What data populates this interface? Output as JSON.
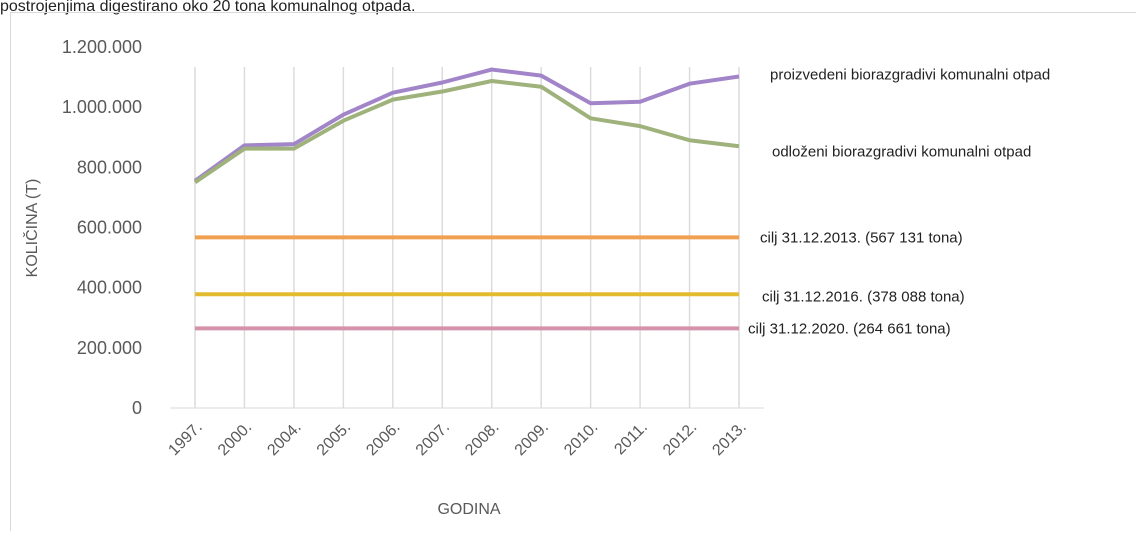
{
  "caption": "postrojenjima digestirano oko 20 tona komunalnog otpada.",
  "chart_data": {
    "type": "line",
    "y_label": "KOLIČINA (T)",
    "x_label": "GODINA",
    "categories": [
      "1997.",
      "2000.",
      "2004.",
      "2005.",
      "2006.",
      "2007.",
      "2008.",
      "2009.",
      "2010.",
      "2011.",
      "2012.",
      "2013."
    ],
    "series": [
      {
        "name": "proizvedeni biorazgradivi komunalni otpad",
        "color": "#a285c9",
        "values": [
          755000,
          873000,
          877000,
          975000,
          1048000,
          1082000,
          1125000,
          1105000,
          1013000,
          1018000,
          1078000,
          1102000
        ]
      },
      {
        "name": "odloženi biorazgradivi komunalni otpad",
        "color": "#9fb27c",
        "values": [
          750000,
          862000,
          862000,
          955000,
          1025000,
          1052000,
          1087000,
          1068000,
          963000,
          937000,
          890000,
          870000
        ]
      },
      {
        "name": "cilj 31.12.2013. (567 131 tona)",
        "color": "#f0a050",
        "values": [
          567131,
          567131,
          567131,
          567131,
          567131,
          567131,
          567131,
          567131,
          567131,
          567131,
          567131,
          567131
        ]
      },
      {
        "name": "cilj 31.12.2016. (378 088 tona)",
        "color": "#e3bb2e",
        "values": [
          378088,
          378088,
          378088,
          378088,
          378088,
          378088,
          378088,
          378088,
          378088,
          378088,
          378088,
          378088
        ]
      },
      {
        "name": "cilj 31.12.2020. (264 661 tona)",
        "color": "#d592ab",
        "values": [
          264661,
          264661,
          264661,
          264661,
          264661,
          264661,
          264661,
          264661,
          264661,
          264661,
          264661,
          264661
        ]
      }
    ],
    "ylim": [
      0,
      1200000
    ],
    "yticks": [
      0,
      {
        "value": 200000,
        "label": "200.000"
      },
      {
        "value": 400000,
        "label": "400.000"
      },
      {
        "value": 600000,
        "label": "600.000"
      },
      {
        "value": 800000,
        "label": "800.000"
      },
      {
        "value": 1000000,
        "label": "1.000.000"
      },
      {
        "value": 1200000,
        "label": "1.200.000"
      }
    ],
    "grid": true
  }
}
